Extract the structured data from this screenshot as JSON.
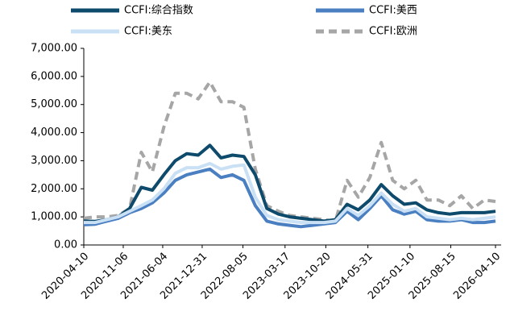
{
  "chart_data": {
    "type": "line",
    "x": [
      "2020-04-10",
      "2020-06-10",
      "2020-08-10",
      "2020-10-10",
      "2020-12-10",
      "2021-02-10",
      "2021-04-10",
      "2021-06-10",
      "2021-08-10",
      "2021-10-10",
      "2021-12-10",
      "2022-02-10",
      "2022-04-10",
      "2022-06-10",
      "2022-08-10",
      "2022-10-10",
      "2022-12-10",
      "2023-02-10",
      "2023-04-10",
      "2023-06-10",
      "2023-08-10",
      "2023-10-10",
      "2023-12-10",
      "2024-02-10",
      "2024-04-10",
      "2024-06-10",
      "2024-08-10",
      "2024-10-10",
      "2024-12-10",
      "2025-02-10",
      "2025-04-10",
      "2025-06-10",
      "2025-08-10",
      "2025-10-10",
      "2025-12-10",
      "2026-02-10",
      "2026-04-10"
    ],
    "series": [
      {
        "name": "CCFI:综合指数",
        "color": "#0d4a6b",
        "width": 4,
        "dash": false,
        "values": [
          850,
          840,
          900,
          1000,
          1300,
          2050,
          1950,
          2500,
          3000,
          3250,
          3200,
          3550,
          3100,
          3200,
          3150,
          2500,
          1300,
          1100,
          1000,
          950,
          900,
          850,
          900,
          1450,
          1250,
          1600,
          2150,
          1750,
          1450,
          1500,
          1250,
          1150,
          1100,
          1150,
          1150,
          1150,
          1200
        ]
      },
      {
        "name": "CCFI:美西",
        "color": "#4a7fc1",
        "width": 4,
        "dash": false,
        "values": [
          720,
          740,
          850,
          950,
          1150,
          1300,
          1500,
          1850,
          2300,
          2500,
          2600,
          2700,
          2400,
          2500,
          2300,
          1400,
          850,
          750,
          700,
          650,
          700,
          750,
          800,
          1200,
          900,
          1300,
          1750,
          1250,
          1100,
          1200,
          900,
          850,
          850,
          900,
          800,
          800,
          850
        ]
      },
      {
        "name": "CCFI:美东",
        "color": "#c9e0f5",
        "width": 4,
        "dash": false,
        "values": [
          800,
          800,
          900,
          1000,
          1200,
          1400,
          1600,
          2000,
          2550,
          2750,
          2750,
          2900,
          2700,
          2800,
          2850,
          1700,
          1050,
          900,
          850,
          800,
          800,
          800,
          850,
          1300,
          1050,
          1400,
          1850,
          1450,
          1200,
          1300,
          1000,
          950,
          900,
          950,
          900,
          950,
          1000
        ]
      },
      {
        "name": "CCFI:欧洲",
        "color": "#a6a6a6",
        "width": 4,
        "dash": true,
        "values": [
          950,
          1000,
          1000,
          1050,
          1300,
          3300,
          2600,
          4200,
          5400,
          5400,
          5200,
          5800,
          5100,
          5100,
          4900,
          2700,
          1400,
          1200,
          1050,
          1000,
          950,
          900,
          850,
          2300,
          1700,
          2400,
          3650,
          2300,
          2000,
          2300,
          1600,
          1600,
          1400,
          1750,
          1300,
          1600,
          1550
        ]
      }
    ],
    "xlim": [
      "2020-04-10",
      "2026-05-10"
    ],
    "xticks": [
      "2020-04-10",
      "2020-11-06",
      "2021-06-04",
      "2021-12-31",
      "2022-08-05",
      "2023-03-17",
      "2023-10-20",
      "2024-05-31",
      "2025-01-10",
      "2025-08-15",
      "2026-04-10"
    ],
    "ylim": [
      0,
      7000
    ],
    "yticks": [
      {
        "value": 0,
        "label": "0.00"
      },
      {
        "value": 1000,
        "label": "1,000.00"
      },
      {
        "value": 2000,
        "label": "2,000.00"
      },
      {
        "value": 3000,
        "label": "3,000.00"
      },
      {
        "value": 4000,
        "label": "4,000.00"
      },
      {
        "value": 5000,
        "label": "5,000.00"
      },
      {
        "value": 6000,
        "label": "6,000.00"
      },
      {
        "value": 7000,
        "label": "7,000.00"
      }
    ]
  }
}
